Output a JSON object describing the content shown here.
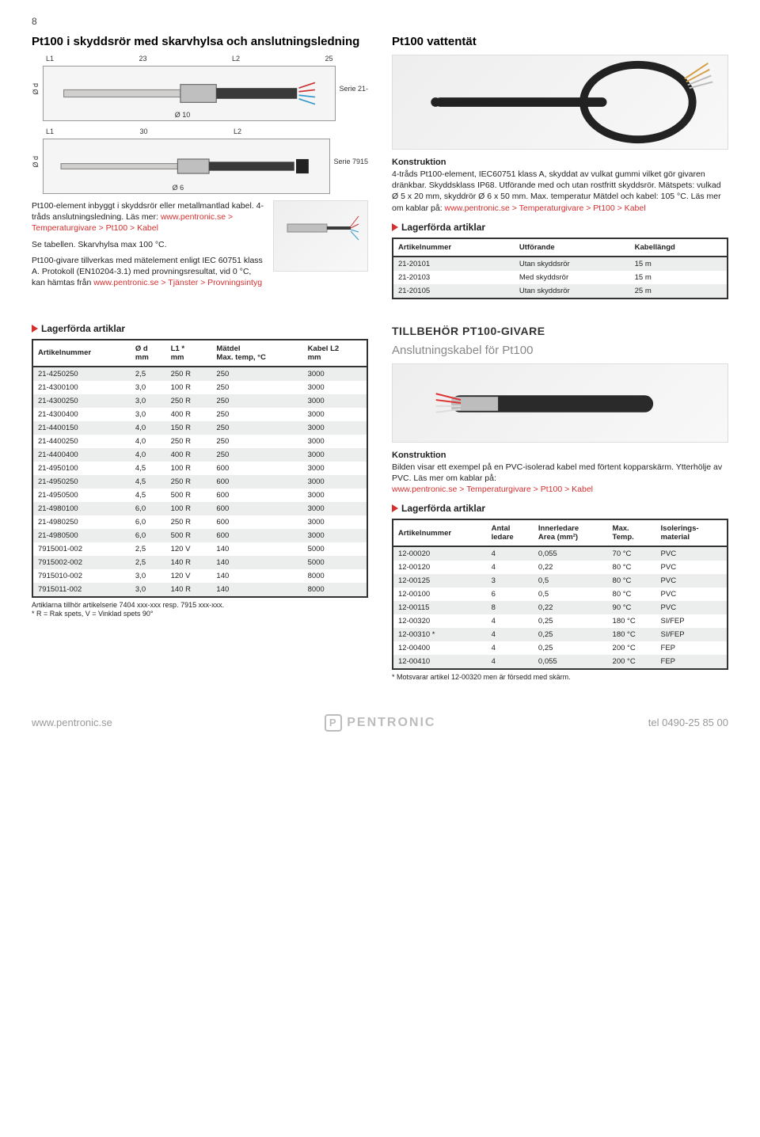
{
  "page_number": "8",
  "left": {
    "title": "Pt100 i skyddsrör med skarvhylsa och anslutningsledning",
    "diagram1": {
      "L1": "L1",
      "d23": "23",
      "L2": "L2",
      "d25": "25",
      "serie": "Serie 21-",
      "od": "Ø d",
      "o10": "Ø 10"
    },
    "diagram2": {
      "L1": "L1",
      "d30": "30",
      "L2": "L2",
      "serie": "Serie 7915",
      "od": "Ø d",
      "o6": "Ø 6"
    },
    "para1": "Pt100-element inbyggt i skyddsrör eller metallmantlad kabel. 4-tråds anslutningsledning. Läs mer: ",
    "para1_link": "www.pentronic.se > Temperaturgivare > Pt100 > Kabel",
    "para2": "Se tabellen. Skarvhylsa max 100 °C.",
    "para3a": "Pt100-givare tillverkas med mätelement enligt IEC 60751 klass A. Protokoll (EN10204-3.1) med provningsresultat, vid 0 °C, kan hämtas från ",
    "para3_link": "www.pentronic.se > Tjänster > Provningsintyg",
    "lager": "Lagerförda artiklar",
    "table": {
      "headers": [
        "Artikelnummer",
        "Ø d\nmm",
        "L1 *\nmm",
        "Mätdel\nMax. temp, °C",
        "Kabel L2\nmm"
      ],
      "rows": [
        [
          "21-4250250",
          "2,5",
          "250 R",
          "250",
          "3000"
        ],
        [
          "21-4300100",
          "3,0",
          "100 R",
          "250",
          "3000"
        ],
        [
          "21-4300250",
          "3,0",
          "250 R",
          "250",
          "3000"
        ],
        [
          "21-4300400",
          "3,0",
          "400 R",
          "250",
          "3000"
        ],
        [
          "21-4400150",
          "4,0",
          "150 R",
          "250",
          "3000"
        ],
        [
          "21-4400250",
          "4,0",
          "250 R",
          "250",
          "3000"
        ],
        [
          "21-4400400",
          "4,0",
          "400 R",
          "250",
          "3000"
        ],
        [
          "21-4950100",
          "4,5",
          "100 R",
          "600",
          "3000"
        ],
        [
          "21-4950250",
          "4,5",
          "250 R",
          "600",
          "3000"
        ],
        [
          "21-4950500",
          "4,5",
          "500 R",
          "600",
          "3000"
        ],
        [
          "21-4980100",
          "6,0",
          "100 R",
          "600",
          "3000"
        ],
        [
          "21-4980250",
          "6,0",
          "250 R",
          "600",
          "3000"
        ],
        [
          "21-4980500",
          "6,0",
          "500 R",
          "600",
          "3000"
        ],
        [
          "7915001-002",
          "2,5",
          "120 V",
          "140",
          "5000"
        ],
        [
          "7915002-002",
          "2,5",
          "140 R",
          "140",
          "5000"
        ],
        [
          "7915010-002",
          "3,0",
          "120 V",
          "140",
          "8000"
        ],
        [
          "7915011-002",
          "3,0",
          "140 R",
          "140",
          "8000"
        ]
      ],
      "footnote": "Artiklarna tillhör artikelserie 7404 xxx-xxx resp. 7915 xxx-xxx.\n* R = Rak spets, V = Vinklad spets 90°"
    }
  },
  "right": {
    "title": "Pt100 vattentät",
    "kon_h": "Konstruktion",
    "kon_body_a": "4-tråds Pt100-element, IEC60751 klass A, skyddat av vulkat gummi vilket gör givaren dränkbar. Skyddsklass IP68. Utförande med och utan rostfritt skyddsrör. Mätspets: vulkad Ø 5 x 20 mm, skyddrör Ø 6 x 50 mm. Max. temperatur Mätdel och kabel: 105 °C. Läs mer om kablar på: ",
    "kon_link": "www.pentronic.se > Temperaturgivare > Pt100 > Kabel",
    "lager": "Lagerförda artiklar",
    "table1": {
      "headers": [
        "Artikelnummer",
        "Utförande",
        "Kabellängd"
      ],
      "rows": [
        [
          "21-20101",
          "Utan skyddsrör",
          "15 m"
        ],
        [
          "21-20103",
          "Med skyddsrör",
          "15 m"
        ],
        [
          "21-20105",
          "Utan skyddsrör",
          "25 m"
        ]
      ]
    },
    "acc_title": "TILLBEHÖR PT100-GIVARE",
    "acc_sub": "Anslutningskabel för Pt100",
    "acc_kon_h": "Konstruktion",
    "acc_kon_body": "Bilden visar ett exempel på en PVC-isolerad kabel med förtent kopparskärm. Ytterhölje av PVC. Läs mer om kablar på:",
    "acc_kon_link": "www.pentronic.se > Temperaturgivare > Pt100 > Kabel",
    "lager2": "Lagerförda artiklar",
    "table2": {
      "headers": [
        "Artikelnummer",
        "Antal\nledare",
        "Innerledare\nArea (mm²)",
        "Max.\nTemp.",
        "Isolerings-\nmaterial"
      ],
      "rows": [
        [
          "12-00020",
          "4",
          "0,055",
          "70 °C",
          "PVC"
        ],
        [
          "12-00120",
          "4",
          "0,22",
          "80 °C",
          "PVC"
        ],
        [
          "12-00125",
          "3",
          "0,5",
          "80 °C",
          "PVC"
        ],
        [
          "12-00100",
          "6",
          "0,5",
          "80 °C",
          "PVC"
        ],
        [
          "12-00115",
          "8",
          "0,22",
          "90 °C",
          "PVC"
        ],
        [
          "12-00320",
          "4",
          "0,25",
          "180 °C",
          "SI/FEP"
        ],
        [
          "12-00310 *",
          "4",
          "0,25",
          "180 °C",
          "SI/FEP"
        ],
        [
          "12-00400",
          "4",
          "0,25",
          "200 °C",
          "FEP"
        ],
        [
          "12-00410",
          "4",
          "0,055",
          "200 °C",
          "FEP"
        ]
      ],
      "footnote": "* Motsvarar artikel 12-00320 men är försedd med skärm."
    }
  },
  "footer": {
    "url": "www.pentronic.se",
    "brand": "PENTRONIC",
    "tel": "tel 0490-25 85 00"
  }
}
